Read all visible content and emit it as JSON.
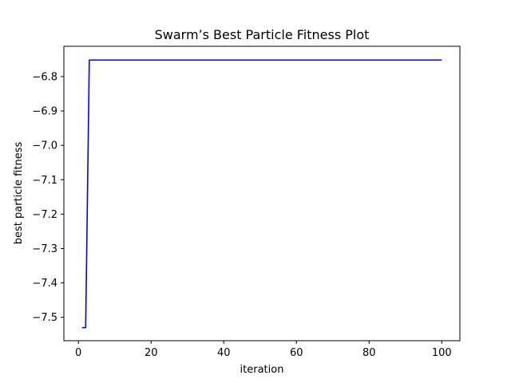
{
  "chart_data": {
    "type": "line",
    "title": "Swarm’s Best Particle Fitness Plot",
    "xlabel": "iteration",
    "ylabel": "best particle fitness",
    "xlim": [
      -4.0,
      105.0
    ],
    "ylim": [
      -7.568,
      -6.712
    ],
    "xticks": [
      0,
      20,
      40,
      60,
      80,
      100
    ],
    "yticks": [
      -7.5,
      -7.4,
      -7.3,
      -7.2,
      -7.1,
      -7.0,
      -6.9,
      -6.8
    ],
    "xtick_labels": [
      "0",
      "20",
      "40",
      "60",
      "80",
      "100"
    ],
    "ytick_labels": [
      "−7.5",
      "−7.4",
      "−7.3",
      "−7.2",
      "−7.1",
      "−7.0",
      "−6.9",
      "−6.8"
    ],
    "grid": false,
    "series": [
      {
        "color": "#0000ff",
        "x": [
          1,
          2,
          3,
          100
        ],
        "y": [
          -7.53,
          -7.53,
          -6.752,
          -6.752
        ]
      }
    ]
  }
}
